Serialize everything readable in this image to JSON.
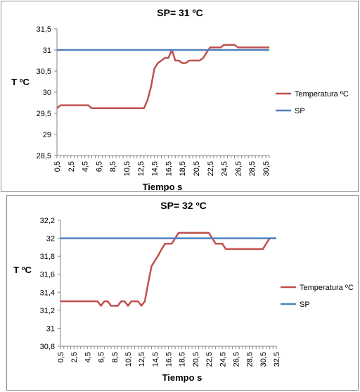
{
  "colors": {
    "temperatura": "#c0504d",
    "sp": "#4f81bd",
    "axis": "#868686",
    "grid": "#d9d9d9"
  },
  "chart_data": [
    {
      "type": "line",
      "title": "SP= 31 ºC",
      "xlabel": "Tiempo s",
      "ylabel": "T ºC",
      "ylim": [
        28.5,
        31.5
      ],
      "yticks": [
        28.5,
        29,
        29.5,
        30,
        30.5,
        31,
        31.5
      ],
      "ytick_labels": [
        "28,5",
        "29",
        "29,5",
        "30",
        "30,5",
        "31",
        "31,5"
      ],
      "x": [
        0.5,
        1,
        1.5,
        2,
        2.5,
        3,
        3.5,
        4,
        4.5,
        5,
        5.5,
        6,
        6.5,
        7,
        7.5,
        8,
        8.5,
        9,
        9.5,
        10,
        10.5,
        11,
        11.5,
        12,
        12.5,
        13,
        13.5,
        14,
        14.5,
        15,
        15.5,
        16,
        16.5,
        17,
        17.5,
        18,
        18.5,
        19,
        19.5,
        20,
        20.5,
        21,
        21.5,
        22,
        22.5,
        23,
        23.5,
        24,
        24.5,
        25,
        25.5,
        26,
        26.5,
        27,
        27.5,
        28,
        28.5,
        29,
        29.5,
        30,
        30.5,
        31
      ],
      "xtick_labels": [
        "0,5",
        "2,5",
        "4,5",
        "6,5",
        "8,5",
        "10,5",
        "12,5",
        "14,5",
        "16,5",
        "18,5",
        "20,5",
        "22,5",
        "24,5",
        "26,5",
        "28,5",
        "30,5"
      ],
      "series": [
        {
          "name": "Temperatura ºC",
          "values": [
            29.62,
            29.69,
            29.69,
            29.69,
            29.69,
            29.69,
            29.69,
            29.69,
            29.69,
            29.69,
            29.62,
            29.62,
            29.62,
            29.62,
            29.62,
            29.62,
            29.62,
            29.62,
            29.62,
            29.62,
            29.62,
            29.62,
            29.62,
            29.62,
            29.62,
            29.62,
            29.81,
            30.12,
            30.56,
            30.69,
            30.75,
            30.81,
            30.81,
            31.0,
            30.75,
            30.75,
            30.69,
            30.69,
            30.75,
            30.75,
            30.75,
            30.75,
            30.81,
            30.94,
            31.06,
            31.06,
            31.06,
            31.06,
            31.12,
            31.12,
            31.12,
            31.12,
            31.06,
            31.06,
            31.06,
            31.06,
            31.06,
            31.06,
            31.06,
            31.06,
            31.06,
            31.06
          ]
        },
        {
          "name": "SP",
          "values": [
            31,
            31,
            31,
            31,
            31,
            31,
            31,
            31,
            31,
            31,
            31,
            31,
            31,
            31,
            31,
            31,
            31,
            31,
            31,
            31,
            31,
            31,
            31,
            31,
            31,
            31,
            31,
            31,
            31,
            31,
            31,
            31,
            31,
            31,
            31,
            31,
            31,
            31,
            31,
            31,
            31,
            31,
            31,
            31,
            31,
            31,
            31,
            31,
            31,
            31,
            31,
            31,
            31,
            31,
            31,
            31,
            31,
            31,
            31,
            31,
            31,
            31
          ]
        }
      ],
      "legend": "right",
      "grid": false
    },
    {
      "type": "line",
      "title": "SP= 32 ºC",
      "xlabel": "Tiempo s",
      "ylabel": "T ºC",
      "ylim": [
        30.8,
        32.2
      ],
      "yticks": [
        30.8,
        31,
        31.2,
        31.4,
        31.6,
        31.8,
        32,
        32.2
      ],
      "ytick_labels": [
        "30,8",
        "31",
        "31,2",
        "31,4",
        "31,6",
        "31,8",
        "32",
        "32,2"
      ],
      "x": [
        0.5,
        1,
        1.5,
        2,
        2.5,
        3,
        3.5,
        4,
        4.5,
        5,
        5.5,
        6,
        6.5,
        7,
        7.5,
        8,
        8.5,
        9,
        9.5,
        10,
        10.5,
        11,
        11.5,
        12,
        12.5,
        13,
        13.5,
        14,
        14.5,
        15,
        15.5,
        16,
        16.5,
        17,
        17.5,
        18,
        18.5,
        19,
        19.5,
        20,
        20.5,
        21,
        21.5,
        22,
        22.5,
        23,
        23.5,
        24,
        24.5,
        25,
        25.5,
        26,
        26.5,
        27,
        27.5,
        28,
        28.5,
        29,
        29.5,
        30,
        30.5,
        31,
        31.5,
        32,
        32.5
      ],
      "xtick_labels": [
        "0,5",
        "2,5",
        "4,5",
        "6,5",
        "8,5",
        "10,5",
        "12,5",
        "14,5",
        "16,5",
        "18,5",
        "20,5",
        "22,5",
        "24,5",
        "26,5",
        "28,5",
        "30,5",
        "32,5"
      ],
      "series": [
        {
          "name": "Temperatura ºC",
          "values": [
            31.3,
            31.3,
            31.3,
            31.3,
            31.3,
            31.3,
            31.3,
            31.3,
            31.3,
            31.3,
            31.3,
            31.3,
            31.25,
            31.3,
            31.3,
            31.25,
            31.25,
            31.25,
            31.3,
            31.3,
            31.25,
            31.3,
            31.3,
            31.3,
            31.25,
            31.3,
            31.5,
            31.69,
            31.75,
            31.81,
            31.88,
            31.94,
            31.94,
            31.94,
            32.0,
            32.06,
            32.06,
            32.06,
            32.06,
            32.06,
            32.06,
            32.06,
            32.06,
            32.06,
            32.06,
            32.0,
            31.94,
            31.94,
            31.94,
            31.88,
            31.88,
            31.88,
            31.88,
            31.88,
            31.88,
            31.88,
            31.88,
            31.88,
            31.88,
            31.88,
            31.88,
            31.94,
            32.0,
            32.0,
            32.0
          ]
        },
        {
          "name": "SP",
          "values": [
            32,
            32,
            32,
            32,
            32,
            32,
            32,
            32,
            32,
            32,
            32,
            32,
            32,
            32,
            32,
            32,
            32,
            32,
            32,
            32,
            32,
            32,
            32,
            32,
            32,
            32,
            32,
            32,
            32,
            32,
            32,
            32,
            32,
            32,
            32,
            32,
            32,
            32,
            32,
            32,
            32,
            32,
            32,
            32,
            32,
            32,
            32,
            32,
            32,
            32,
            32,
            32,
            32,
            32,
            32,
            32,
            32,
            32,
            32,
            32,
            32,
            32,
            32,
            32,
            32
          ]
        }
      ],
      "legend": "right",
      "grid": false
    }
  ]
}
